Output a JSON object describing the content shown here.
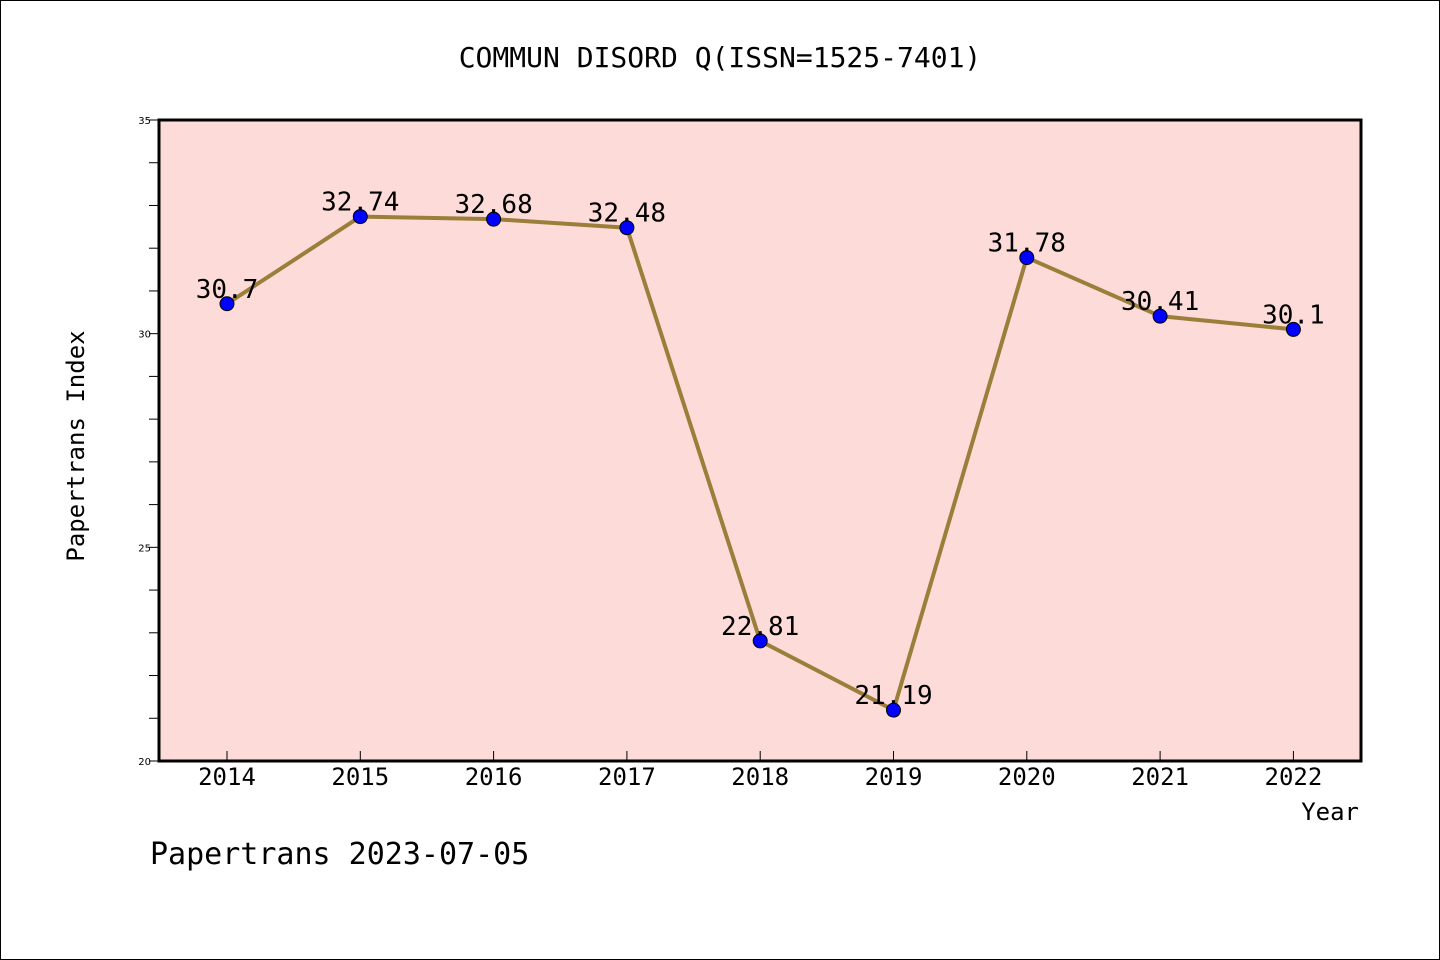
{
  "chart_data": {
    "type": "line",
    "title": "COMMUN DISORD Q(ISSN=1525-7401)",
    "xlabel": "Year",
    "ylabel": "Papertrans Index",
    "categories": [
      "2014",
      "2015",
      "2016",
      "2017",
      "2018",
      "2019",
      "2020",
      "2021",
      "2022"
    ],
    "values": [
      30.7,
      32.74,
      32.68,
      32.48,
      22.81,
      21.19,
      31.78,
      30.41,
      30.1
    ],
    "data_labels": [
      "30.7",
      "32.74",
      "32.68",
      "32.48",
      "22.81",
      "21.19",
      "31.78",
      "30.41",
      "30.1"
    ],
    "ylim": [
      20,
      35
    ],
    "yticks": [
      "20",
      "25",
      "30",
      "35"
    ],
    "grid": false,
    "legend": "none",
    "footer": "Papertrans 2023-07-05",
    "colors": {
      "plot_background": "#fddbd9",
      "line": "#9a7e3a",
      "marker": "#0000ff",
      "axis": "#000000"
    }
  }
}
